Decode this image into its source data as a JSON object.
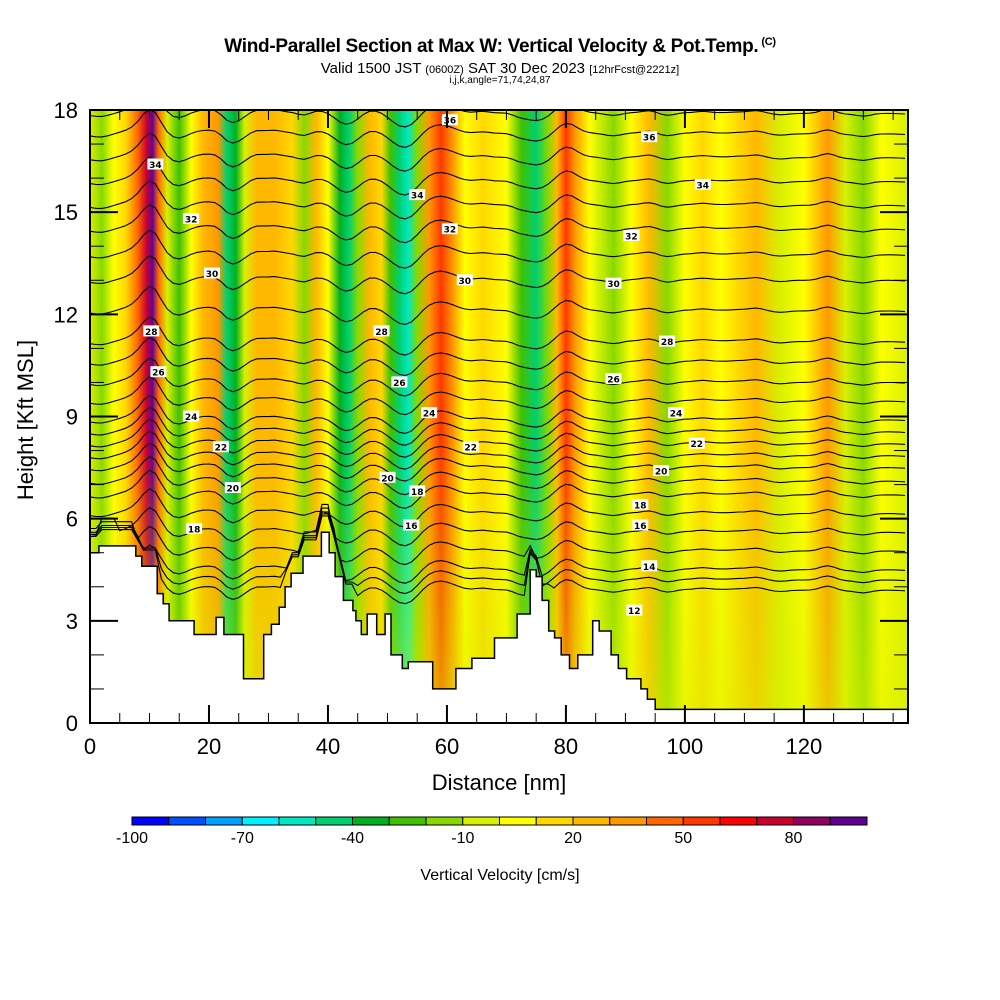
{
  "header": {
    "title": "Wind-Parallel Section at Max W: Vertical Velocity & Pot.Temp.",
    "copyright_mark": "(C)",
    "valid_prefix": "Valid 1500 JST",
    "valid_utc": "(0600Z)",
    "valid_date": "SAT 30 Dec 2023",
    "forecast_info": "[12hrFcst@2221z]",
    "indices": "i,j,k,angle=71,74,24,87"
  },
  "chart_data": {
    "type": "heatmap",
    "title": "Wind-Parallel Section at Max W: Vertical Velocity & Pot.Temp.",
    "xlabel": "Distance [nm]",
    "ylabel": "Height [Kft MSL]",
    "xlim": [
      0,
      137.5
    ],
    "ylim": [
      0,
      18
    ],
    "x_ticks": [
      "0",
      "20",
      "40",
      "60",
      "80",
      "100",
      "120"
    ],
    "x_tick_values": [
      0,
      20,
      40,
      60,
      80,
      100,
      120
    ],
    "y_ticks": [
      "0",
      "3",
      "6",
      "9",
      "12",
      "15",
      "18"
    ],
    "y_tick_values": [
      0,
      3,
      6,
      9,
      12,
      15,
      18
    ],
    "colorbar": {
      "label": "Vertical Velocity [cm/s]",
      "range": [
        -100,
        100
      ],
      "tick_labels": [
        "-100",
        "-70",
        "-40",
        "-10",
        "20",
        "50",
        "80"
      ],
      "tick_values": [
        -100,
        -70,
        -40,
        -10,
        20,
        50,
        80
      ],
      "colors": [
        "#0000ff",
        "#0050ff",
        "#00a0ff",
        "#00f0ff",
        "#00e8c0",
        "#00d070",
        "#00b020",
        "#40c000",
        "#88d800",
        "#d8f000",
        "#ffff00",
        "#ffd800",
        "#ffb800",
        "#ff9800",
        "#ff6800",
        "#ff3800",
        "#ff0000",
        "#c80030",
        "#900060",
        "#600090"
      ]
    },
    "w_columns": [
      {
        "x": 0,
        "w": -10
      },
      {
        "x": 2,
        "w": -20
      },
      {
        "x": 4,
        "w": 0
      },
      {
        "x": 6,
        "w": 15
      },
      {
        "x": 8,
        "w": 40
      },
      {
        "x": 9.5,
        "w": 70
      },
      {
        "x": 10.5,
        "w": 95
      },
      {
        "x": 11.5,
        "w": 40
      },
      {
        "x": 13,
        "w": -10
      },
      {
        "x": 15,
        "w": -30
      },
      {
        "x": 17,
        "w": 5
      },
      {
        "x": 19,
        "w": 20
      },
      {
        "x": 21.5,
        "w": 30
      },
      {
        "x": 23,
        "w": -45
      },
      {
        "x": 24.5,
        "w": -40
      },
      {
        "x": 26,
        "w": -10
      },
      {
        "x": 28,
        "w": 25
      },
      {
        "x": 31,
        "w": 25
      },
      {
        "x": 34,
        "w": 10
      },
      {
        "x": 36,
        "w": -20
      },
      {
        "x": 38,
        "w": 20
      },
      {
        "x": 40,
        "w": 5
      },
      {
        "x": 42,
        "w": -40
      },
      {
        "x": 43.5,
        "w": -50
      },
      {
        "x": 45,
        "w": -20
      },
      {
        "x": 47,
        "w": 20
      },
      {
        "x": 49,
        "w": 10
      },
      {
        "x": 50.5,
        "w": -25
      },
      {
        "x": 52,
        "w": -50
      },
      {
        "x": 53.5,
        "w": -60
      },
      {
        "x": 55,
        "w": -20
      },
      {
        "x": 57,
        "w": 35
      },
      {
        "x": 59,
        "w": 50
      },
      {
        "x": 61,
        "w": 30
      },
      {
        "x": 63,
        "w": 5
      },
      {
        "x": 66,
        "w": 15
      },
      {
        "x": 70,
        "w": 5
      },
      {
        "x": 72.5,
        "w": -30
      },
      {
        "x": 75,
        "w": -45
      },
      {
        "x": 77,
        "w": -20
      },
      {
        "x": 78.5,
        "w": 20
      },
      {
        "x": 80,
        "w": 55
      },
      {
        "x": 81.5,
        "w": 30
      },
      {
        "x": 84,
        "w": 5
      },
      {
        "x": 88,
        "w": -15
      },
      {
        "x": 91,
        "w": 5
      },
      {
        "x": 94,
        "w": 20
      },
      {
        "x": 97,
        "w": -15
      },
      {
        "x": 100,
        "w": 5
      },
      {
        "x": 103,
        "w": 15
      },
      {
        "x": 106,
        "w": 5
      },
      {
        "x": 109,
        "w": 10
      },
      {
        "x": 112,
        "w": 20
      },
      {
        "x": 116,
        "w": -10
      },
      {
        "x": 120,
        "w": 0
      },
      {
        "x": 124,
        "w": 30
      },
      {
        "x": 127,
        "w": -5
      },
      {
        "x": 130,
        "w": -20
      },
      {
        "x": 133,
        "w": 0
      },
      {
        "x": 137.5,
        "w": -5
      }
    ],
    "terrain": {
      "x": [
        0,
        1.5,
        1.5,
        7.7,
        7.7,
        8.7,
        8.7,
        11.3,
        11.3,
        12.3,
        12.3,
        13.3,
        13.3,
        17.5,
        17.5,
        19.5,
        19.5,
        21.2,
        21.2,
        22.5,
        22.5,
        25.8,
        25.8,
        29.2,
        29.2,
        30.5,
        30.5,
        31.8,
        31.8,
        32.8,
        32.8,
        33.8,
        33.8,
        35.8,
        35.8,
        38.9,
        38.9,
        40.2,
        40.2,
        41.2,
        41.2,
        42.6,
        42.6,
        44.2,
        44.2,
        44.7,
        44.7,
        45.6,
        45.6,
        46.6,
        46.6,
        48.2,
        48.2,
        49.6,
        49.6,
        50.6,
        50.6,
        52.5,
        52.5,
        53.5,
        53.5,
        57.6,
        57.6,
        59.2,
        59.2,
        61.5,
        61.5,
        64.2,
        64.2,
        68,
        68,
        71.8,
        71.8,
        74,
        74,
        75,
        75,
        76,
        76,
        77.1,
        77.1,
        78.1,
        78.1,
        79.2,
        79.2,
        80.6,
        80.6,
        82,
        82,
        84.5,
        84.5,
        85.6,
        85.6,
        87.6,
        87.6,
        88.8,
        88.8,
        90.2,
        90.2,
        92.6,
        92.6,
        93.7,
        93.7,
        95,
        95,
        96,
        96,
        97.3,
        97.3,
        98.5,
        98.5,
        100,
        100,
        104.2,
        104.2,
        137.5
      ],
      "height": [
        5.0,
        5.0,
        5.2,
        5.2,
        4.9,
        4.9,
        4.6,
        4.6,
        3.8,
        3.8,
        3.5,
        3.5,
        3.0,
        3.0,
        2.6,
        2.6,
        2.6,
        2.6,
        3.1,
        3.1,
        2.6,
        2.6,
        1.3,
        1.3,
        2.6,
        2.6,
        2.9,
        2.9,
        3.4,
        3.4,
        4.0,
        4.0,
        4.4,
        4.4,
        4.9,
        4.9,
        5.6,
        5.6,
        5.0,
        5.0,
        4.3,
        4.3,
        3.6,
        3.6,
        3.3,
        3.3,
        3.0,
        3.0,
        2.6,
        2.6,
        3.2,
        3.2,
        2.6,
        2.6,
        3.2,
        3.2,
        2.0,
        2.0,
        1.6,
        1.6,
        1.8,
        1.8,
        1.0,
        1.0,
        1.0,
        1.0,
        1.6,
        1.6,
        1.9,
        1.9,
        2.5,
        2.5,
        3.2,
        3.2,
        4.5,
        4.5,
        4.3,
        4.3,
        3.6,
        3.6,
        2.7,
        2.7,
        2.5,
        2.5,
        2.0,
        2.0,
        1.6,
        1.6,
        2.0,
        2.0,
        3.0,
        3.0,
        2.7,
        2.7,
        2.0,
        2.0,
        1.6,
        1.6,
        1.3,
        1.3,
        1.0,
        1.0,
        0.7,
        0.7,
        0.4,
        0.4,
        0.4,
        0.4,
        0.4,
        0.4,
        0.4,
        0.4,
        0.4,
        0.4,
        0.4,
        0.4
      ]
    },
    "theta_contours": [
      {
        "level": 12,
        "base_height": 3.9,
        "label_x": 91.5,
        "label_h": 3.3
      },
      {
        "level": 14,
        "base_height": 4.5,
        "label_x": 94,
        "label_h": 4.6
      },
      {
        "level": 16,
        "base_height": 5.6,
        "label_x": 54,
        "label_h": 5.8
      },
      {
        "level": 16,
        "base_height": 5.6,
        "label_x": 92.5,
        "label_h": 5.8
      },
      {
        "level": 18,
        "base_height": 6.7,
        "label_x": 17.5,
        "label_h": 5.7
      },
      {
        "level": 18,
        "base_height": 6.7,
        "label_x": 55,
        "label_h": 6.8
      },
      {
        "level": 18,
        "base_height": 6.7,
        "label_x": 92.5,
        "label_h": 6.4
      },
      {
        "level": 20,
        "base_height": 7.5,
        "label_x": 24,
        "label_h": 6.9
      },
      {
        "level": 20,
        "base_height": 7.5,
        "label_x": 50,
        "label_h": 7.2
      },
      {
        "level": 20,
        "base_height": 7.5,
        "label_x": 96,
        "label_h": 7.4
      },
      {
        "level": 22,
        "base_height": 8.2,
        "label_x": 22,
        "label_h": 8.1
      },
      {
        "level": 22,
        "base_height": 8.2,
        "label_x": 64,
        "label_h": 8.1
      },
      {
        "level": 22,
        "base_height": 8.2,
        "label_x": 102,
        "label_h": 8.2
      },
      {
        "level": 24,
        "base_height": 8.9,
        "label_x": 17,
        "label_h": 9.0
      },
      {
        "level": 24,
        "base_height": 8.9,
        "label_x": 57,
        "label_h": 9.1
      },
      {
        "level": 24,
        "base_height": 8.9,
        "label_x": 98.5,
        "label_h": 9.1
      },
      {
        "level": 26,
        "base_height": 10.0,
        "label_x": 11.5,
        "label_h": 10.3
      },
      {
        "level": 26,
        "base_height": 10.0,
        "label_x": 52,
        "label_h": 10.0
      },
      {
        "level": 26,
        "base_height": 10.0,
        "label_x": 88,
        "label_h": 10.1
      },
      {
        "level": 28,
        "base_height": 11.2,
        "label_x": 10.3,
        "label_h": 11.5
      },
      {
        "level": 28,
        "base_height": 11.2,
        "label_x": 49,
        "label_h": 11.5
      },
      {
        "level": 28,
        "base_height": 11.2,
        "label_x": 97,
        "label_h": 11.2
      },
      {
        "level": 30,
        "base_height": 13.0,
        "label_x": 20.5,
        "label_h": 13.2
      },
      {
        "level": 30,
        "base_height": 13.0,
        "label_x": 63,
        "label_h": 13.0
      },
      {
        "level": 30,
        "base_height": 13.0,
        "label_x": 88,
        "label_h": 12.9
      },
      {
        "level": 32,
        "base_height": 14.5,
        "label_x": 17,
        "label_h": 14.8
      },
      {
        "level": 32,
        "base_height": 14.5,
        "label_x": 60.5,
        "label_h": 14.5
      },
      {
        "level": 32,
        "base_height": 14.5,
        "label_x": 91,
        "label_h": 14.3
      },
      {
        "level": 34,
        "base_height": 15.9,
        "label_x": 11,
        "label_h": 16.4
      },
      {
        "level": 34,
        "base_height": 15.9,
        "label_x": 55,
        "label_h": 15.5
      },
      {
        "level": 34,
        "base_height": 15.9,
        "label_x": 103,
        "label_h": 15.8
      },
      {
        "level": 36,
        "base_height": 17.3,
        "label_x": 60.5,
        "label_h": 17.7
      },
      {
        "level": 36,
        "base_height": 17.3,
        "label_x": 94,
        "label_h": 17.2
      }
    ]
  }
}
